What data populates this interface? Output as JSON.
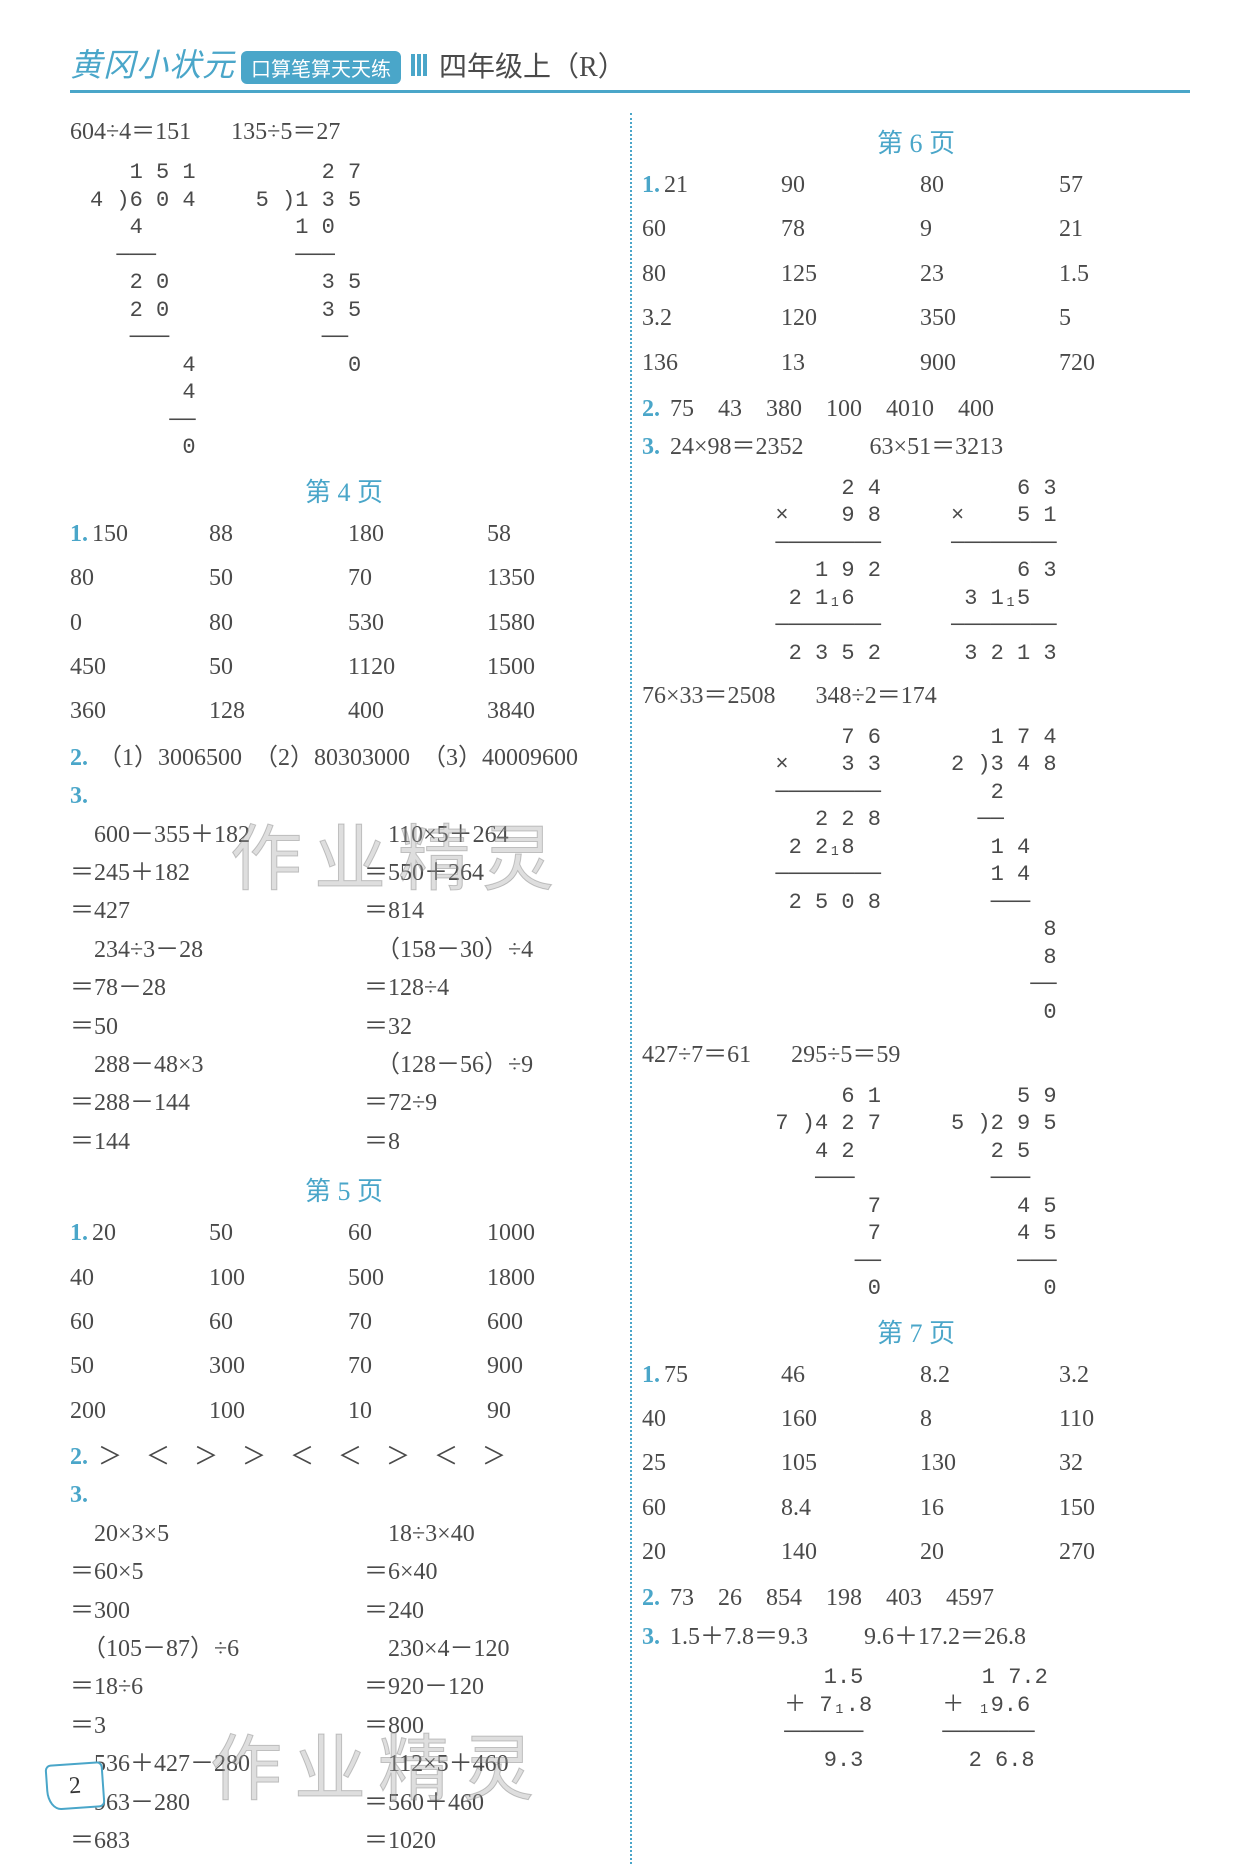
{
  "header": {
    "brand": "黄冈小状元",
    "pill": "口算笔算天天练",
    "grade": "四年级上（R）"
  },
  "colors": {
    "accent": "#4aa6c9",
    "text": "#4a4a4a",
    "watermark": "rgba(160,160,160,0.35)"
  },
  "page_number": "2",
  "watermark_text": "作业精灵",
  "left": {
    "top_equations": [
      "604÷4＝151",
      "135÷5＝27"
    ],
    "longdiv_a": {
      "lines": [
        "   1 5 1",
        "4 )6 0 4",
        "   4",
        "  ───",
        "   2 0",
        "   2 0",
        "   ───",
        "       4",
        "       4",
        "      ──",
        "       0"
      ]
    },
    "longdiv_b": {
      "lines": [
        "     2 7",
        "5 )1 3 5",
        "   1 0",
        "   ───",
        "     3 5",
        "     3 5",
        "     ──",
        "       0"
      ]
    },
    "page4": {
      "heading": "第 4 页",
      "q1_grid": [
        [
          "150",
          "88",
          "180",
          "58"
        ],
        [
          "80",
          "50",
          "70",
          "1350"
        ],
        [
          "0",
          "80",
          "530",
          "1580"
        ],
        [
          "450",
          "50",
          "1120",
          "1500"
        ],
        [
          "360",
          "128",
          "400",
          "3840"
        ]
      ],
      "q2": "（1）3006500　（2）80303000　（3）40009600",
      "q3_left": [
        "　600－355＋182",
        "＝245＋182",
        "＝427",
        "　234÷3－28",
        "＝78－28",
        "＝50",
        "　288－48×3",
        "＝288－144",
        "＝144"
      ],
      "q3_right": [
        "　110×5＋264",
        "＝550＋264",
        "＝814",
        "　（158－30）÷4",
        "＝128÷4",
        "＝32",
        "　（128－56）÷9",
        "＝72÷9",
        "＝8"
      ]
    },
    "page5": {
      "heading": "第 5 页",
      "q1_grid": [
        [
          "20",
          "50",
          "60",
          "1000"
        ],
        [
          "40",
          "100",
          "500",
          "1800"
        ],
        [
          "60",
          "60",
          "70",
          "600"
        ],
        [
          "50",
          "300",
          "70",
          "900"
        ],
        [
          "200",
          "100",
          "10",
          "90"
        ]
      ],
      "q2_symbols": "＞　＜　＞　＞　＜　＜　＞　＜　＞",
      "q3_left": [
        "　20×3×5",
        "＝60×5",
        "＝300",
        "　（105－87）÷6",
        "＝18÷6",
        "＝3",
        "　536＋427－280",
        "＝963－280",
        "＝683"
      ],
      "q3_right": [
        "　18÷3×40",
        "＝6×40",
        "＝240",
        "　230×4－120",
        "＝920－120",
        "＝800",
        "　112×5＋460",
        "＝560＋460",
        "＝1020"
      ]
    }
  },
  "right": {
    "page6": {
      "heading": "第 6 页",
      "q1_grid": [
        [
          "21",
          "90",
          "80",
          "57"
        ],
        [
          "60",
          "78",
          "9",
          "21"
        ],
        [
          "80",
          "125",
          "23",
          "1.5"
        ],
        [
          "3.2",
          "120",
          "350",
          "5"
        ],
        [
          "136",
          "13",
          "900",
          "720"
        ]
      ],
      "q2": "75　43　380　100　4010　400",
      "q3_eqs_a": [
        "24×98＝2352",
        "63×51＝3213"
      ],
      "mult_a": {
        "lines": [
          "     2 4",
          "×    9 8",
          "────────",
          "   1 9 2",
          " 2 1₁6",
          "────────",
          " 2 3 5 2"
        ]
      },
      "mult_b": {
        "lines": [
          "     6 3",
          "×    5 1",
          "────────",
          "     6 3",
          " 3 1₁5",
          "────────",
          " 3 2 1 3"
        ]
      },
      "q3_eqs_b": [
        "76×33＝2508",
        "348÷2＝174"
      ],
      "mult_c": {
        "lines": [
          "     7 6",
          "×    3 3",
          "────────",
          "   2 2 8",
          " 2 2₁8",
          "────────",
          " 2 5 0 8"
        ]
      },
      "longdiv_c": {
        "lines": [
          "   1 7 4",
          "2 )3 4 8",
          "   2",
          "  ──",
          "   1 4",
          "   1 4",
          "   ───",
          "       8",
          "       8",
          "      ──",
          "       0"
        ]
      },
      "q3_eqs_c": [
        "427÷7＝61",
        "295÷5＝59"
      ],
      "longdiv_d": {
        "lines": [
          "     6 1",
          "7 )4 2 7",
          "   4 2",
          "   ───",
          "       7",
          "       7",
          "      ──",
          "       0"
        ]
      },
      "longdiv_e": {
        "lines": [
          "     5 9",
          "5 )2 9 5",
          "   2 5",
          "   ───",
          "     4 5",
          "     4 5",
          "     ───",
          "       0"
        ]
      }
    },
    "page7": {
      "heading": "第 7 页",
      "q1_grid": [
        [
          "75",
          "46",
          "8.2",
          "3.2"
        ],
        [
          "40",
          "160",
          "8",
          "110"
        ],
        [
          "25",
          "105",
          "130",
          "32"
        ],
        [
          "60",
          "8.4",
          "16",
          "150"
        ],
        [
          "20",
          "140",
          "20",
          "270"
        ]
      ],
      "q2": "73　26　854　198　403　4597",
      "q3_eqs": [
        "1.5＋7.8＝9.3",
        "9.6＋17.2＝26.8"
      ],
      "add_a": {
        "lines": [
          "   1.5",
          "＋ 7₁.8",
          "──────",
          "   9.3"
        ]
      },
      "add_b": {
        "lines": [
          "   1 7.2",
          "＋ ₁9.6",
          "───────",
          "  2 6.8"
        ]
      }
    }
  }
}
